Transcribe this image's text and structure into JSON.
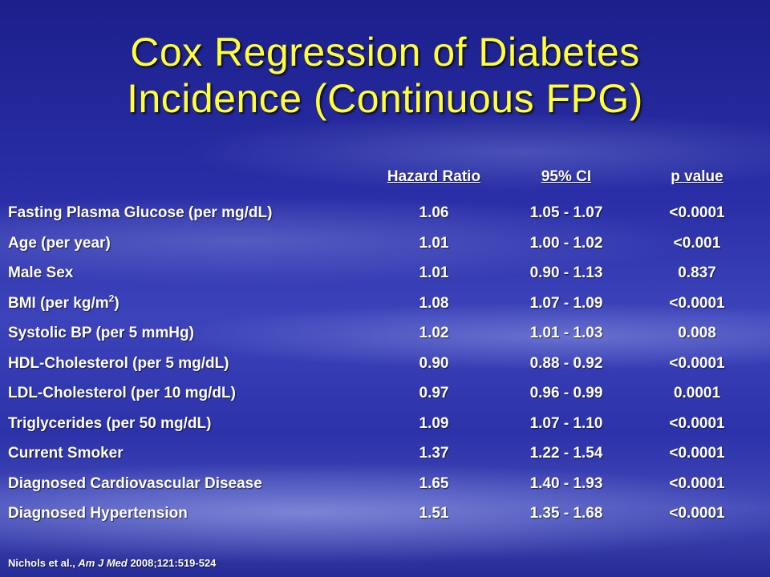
{
  "title": {
    "line1": "Cox Regression of Diabetes",
    "line2": "Incidence (Continuous FPG)"
  },
  "table": {
    "columns": [
      "",
      "Hazard Ratio",
      "95% CI",
      "p value"
    ],
    "rows": [
      {
        "variable": "Fasting Plasma Glucose (per mg/dL)",
        "hr": "1.06",
        "ci": "1.05 - 1.07",
        "p": "<0.0001"
      },
      {
        "variable": "Age (per year)",
        "hr": "1.01",
        "ci": "1.00 - 1.02",
        "p": "<0.001"
      },
      {
        "variable": "Male Sex",
        "hr": "1.01",
        "ci": "0.90 - 1.13",
        "p": "0.837"
      },
      {
        "variable": "BMI (per kg/m",
        "variable_sup": "2",
        "variable_suffix": ")",
        "hr": "1.08",
        "ci": "1.07 - 1.09",
        "p": "<0.0001"
      },
      {
        "variable": "Systolic BP (per 5 mmHg)",
        "hr": "1.02",
        "ci": "1.01 - 1.03",
        "p": "0.008"
      },
      {
        "variable": "HDL-Cholesterol (per 5 mg/dL)",
        "hr": "0.90",
        "ci": "0.88 - 0.92",
        "p": "<0.0001"
      },
      {
        "variable": "LDL-Cholesterol (per 10 mg/dL)",
        "hr": "0.97",
        "ci": "0.96 - 0.99",
        "p": "0.0001"
      },
      {
        "variable": "Triglycerides (per 50 mg/dL)",
        "hr": "1.09",
        "ci": "1.07 - 1.10",
        "p": "<0.0001"
      },
      {
        "variable": "Current Smoker",
        "hr": "1.37",
        "ci": "1.22 - 1.54",
        "p": "<0.0001"
      },
      {
        "variable": "Diagnosed Cardiovascular Disease",
        "hr": "1.65",
        "ci": "1.40 - 1.93",
        "p": "<0.0001"
      },
      {
        "variable": "Diagnosed Hypertension",
        "hr": "1.51",
        "ci": "1.35 - 1.68",
        "p": "<0.0001"
      }
    ]
  },
  "footer": {
    "authors": "Nichols et al., ",
    "journal": "Am J Med",
    "citation": " 2008;121:519-524"
  },
  "colors": {
    "title": "#ffff33",
    "text": "#ffffff",
    "background": "#2a2fa8"
  }
}
